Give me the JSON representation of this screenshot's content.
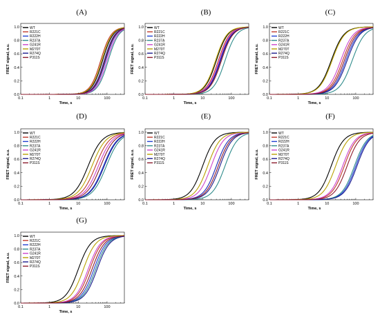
{
  "chart_data": {
    "type": "line",
    "xlabel": "Time, s",
    "ylabel": "FRET signal, a.u.",
    "xscale": "log",
    "xlim": [
      0.1,
      400
    ],
    "ylim": [
      0,
      1.05
    ],
    "x_ticks": [
      "0.1",
      "1",
      "10",
      "100"
    ],
    "y_ticks": [
      "0.0",
      "0.2",
      "0.4",
      "0.6",
      "0.8",
      "1.0"
    ],
    "legend_position": "top-left",
    "grid": false,
    "series_styles": [
      {
        "name": "WT",
        "color": "#000000"
      },
      {
        "name": "R221C",
        "color": "#c0392b"
      },
      {
        "name": "R222H",
        "color": "#1f3fd1"
      },
      {
        "name": "R237A",
        "color": "#2e8b8b"
      },
      {
        "name": "G241R",
        "color": "#cc44cc"
      },
      {
        "name": "M270T",
        "color": "#b8a000"
      },
      {
        "name": "R274Q",
        "color": "#1a1a8c"
      },
      {
        "name": "P311S",
        "color": "#8b1a2b"
      }
    ],
    "curve_model": "sigmoid: y = 1 / (1 + (t50 / t)^n)",
    "panels": [
      {
        "label": "(A)",
        "t50": [
          70,
          60,
          90,
          110,
          100,
          65,
          80,
          85
        ],
        "n": [
          2.4,
          2.4,
          2.4,
          2.4,
          2.4,
          2.4,
          2.4,
          2.4
        ]
      },
      {
        "label": "(B)",
        "t50": [
          30,
          35,
          40,
          60,
          38,
          28,
          42,
          45
        ],
        "n": [
          2.2,
          2.2,
          2.2,
          2.2,
          2.2,
          2.2,
          2.2,
          2.2
        ]
      },
      {
        "label": "(C)",
        "t50": [
          14,
          35,
          45,
          75,
          30,
          15,
          50,
          40
        ],
        "n": [
          2.0,
          2.0,
          2.0,
          2.0,
          2.0,
          2.0,
          2.0,
          2.0
        ]
      },
      {
        "label": "(D)",
        "t50": [
          22,
          40,
          75,
          95,
          50,
          30,
          80,
          60
        ],
        "n": [
          1.8,
          1.8,
          1.8,
          1.8,
          1.8,
          1.8,
          1.8,
          1.8
        ]
      },
      {
        "label": "(E)",
        "t50": [
          10,
          30,
          30,
          60,
          20,
          15,
          40,
          35
        ],
        "n": [
          2.0,
          2.0,
          2.0,
          2.0,
          2.0,
          2.0,
          2.0,
          2.0
        ]
      },
      {
        "label": "(F)",
        "t50": [
          14,
          40,
          100,
          90,
          35,
          20,
          110,
          50
        ],
        "n": [
          2.0,
          2.0,
          2.0,
          2.0,
          2.0,
          2.0,
          2.0,
          2.0
        ]
      },
      {
        "label": "(G)",
        "t50": [
          10,
          25,
          35,
          40,
          22,
          15,
          45,
          30
        ],
        "n": [
          2.0,
          2.0,
          2.0,
          2.0,
          2.0,
          2.0,
          2.0,
          2.0
        ]
      }
    ]
  }
}
